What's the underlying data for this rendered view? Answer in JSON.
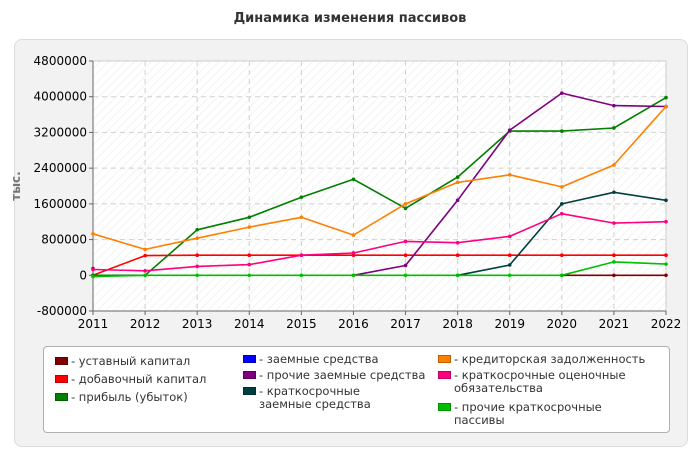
{
  "chart_data": {
    "type": "line",
    "title": "Динамика изменения пассивов",
    "ylabel": "тыс.",
    "xlabel": "",
    "x": [
      "2011",
      "2012",
      "2013",
      "2014",
      "2015",
      "2016",
      "2017",
      "2018",
      "2019",
      "2020",
      "2021",
      "2022"
    ],
    "y_ticks": [
      "4800000",
      "4000000",
      "3200000",
      "2400000",
      "1600000",
      "800000",
      "0",
      "-800000"
    ],
    "ylim": [
      -800000,
      4800000
    ],
    "grid": true,
    "legend_position": "bottom",
    "series": [
      {
        "name": "- уставный капитал",
        "color": "#7f0000",
        "values": [
          150000,
          null,
          null,
          null,
          null,
          null,
          null,
          null,
          null,
          0,
          0,
          0
        ]
      },
      {
        "name": "- добавочный капитал",
        "color": "#ff0000",
        "values": [
          0,
          440000,
          450000,
          450000,
          450000,
          450000,
          450000,
          450000,
          450000,
          450000,
          450000,
          450000
        ]
      },
      {
        "name": "- прибыль (убыток)",
        "color": "#007f00",
        "values": [
          0,
          0,
          1020000,
          1300000,
          1750000,
          2150000,
          1500000,
          2200000,
          3230000,
          3230000,
          3300000,
          3980000
        ]
      },
      {
        "name": "- заемные средства",
        "color": "#0000ff",
        "values": [
          null,
          null,
          null,
          null,
          null,
          null,
          null,
          null,
          null,
          null,
          null,
          null
        ]
      },
      {
        "name": "- прочие заемные средства",
        "color": "#7f007f",
        "values": [
          null,
          null,
          null,
          null,
          null,
          0,
          220000,
          1680000,
          3250000,
          4080000,
          3800000,
          3780000
        ]
      },
      {
        "name": "- краткосрочные заемные средства",
        "color": "#003f3f",
        "values": [
          null,
          null,
          null,
          null,
          null,
          null,
          null,
          0,
          230000,
          1600000,
          1860000,
          1680000
        ]
      },
      {
        "name": "- кредиторская задолженность",
        "color": "#ff7f00",
        "values": [
          930000,
          580000,
          830000,
          1080000,
          1300000,
          900000,
          1600000,
          2080000,
          2250000,
          1980000,
          2470000,
          3780000
        ]
      },
      {
        "name": "- краткосрочные оценочные обязательства",
        "color": "#ff007f",
        "values": [
          130000,
          100000,
          200000,
          240000,
          450000,
          500000,
          760000,
          730000,
          870000,
          1380000,
          1170000,
          1200000
        ]
      },
      {
        "name": "- прочие краткосрочные пассивы",
        "color": "#00bf00",
        "values": [
          -30000,
          0,
          0,
          0,
          0,
          0,
          0,
          0,
          0,
          0,
          300000,
          250000
        ]
      }
    ]
  }
}
